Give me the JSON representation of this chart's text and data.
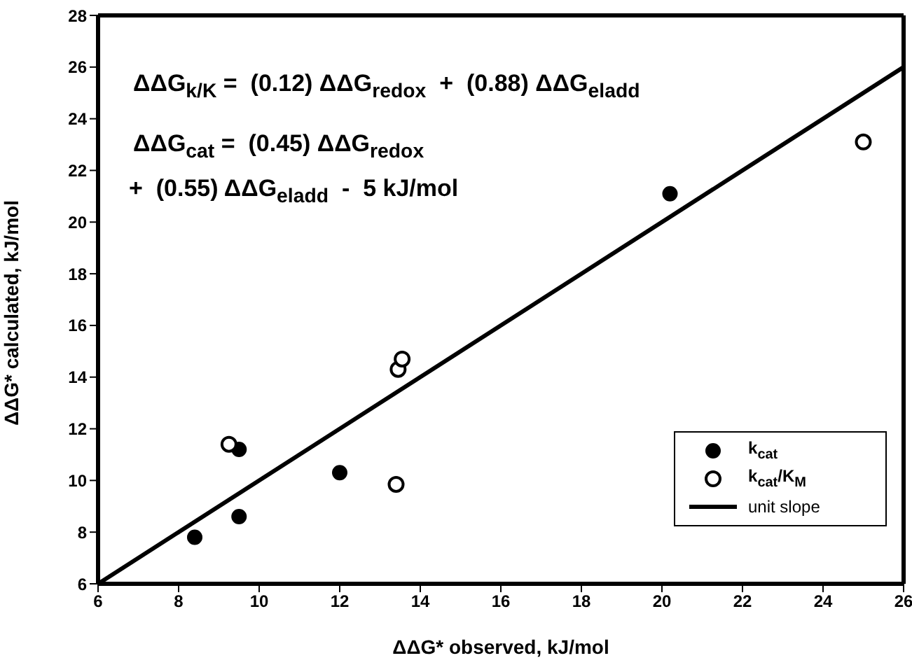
{
  "chart_data": {
    "type": "scatter",
    "xlabel": "ΔΔG* observed, kJ/mol",
    "ylabel": "ΔΔG* calculated, kJ/mol",
    "xlim": [
      6,
      26
    ],
    "xticks": [
      6,
      8,
      10,
      12,
      14,
      16,
      18,
      20,
      22,
      24,
      26
    ],
    "ylim": [
      6,
      28
    ],
    "yticks": [
      6,
      8,
      10,
      12,
      14,
      16,
      18,
      20,
      22,
      24,
      26,
      28
    ],
    "legend": "bottom right",
    "marker": "circle",
    "annotations": [
      "ΔΔG$_{k/K}$ =  (0.12) ΔΔG$_{redox}$  +  (0.88) ΔΔG$_{eladd}$",
      "ΔΔG$_{cat}$ =  (0.45) ΔΔG$_{redox}$",
      "+  (0.55) ΔΔG$_{eladd}$  -  5 kJ/mol"
    ],
    "series": [
      {
        "name": "k$_{cat}$",
        "color": "#000000",
        "x": [
          8.4,
          9.5,
          9.5,
          12.0,
          20.2
        ],
        "values": [
          7.8,
          8.6,
          11.2,
          10.3,
          21.1
        ]
      },
      {
        "name": "k$_{cat}$/K$_{M}$",
        "color": "#000000",
        "marker": "circle_open",
        "x": [
          9.25,
          13.4,
          13.45,
          13.55,
          25.0
        ],
        "values": [
          11.4,
          9.85,
          14.3,
          14.7,
          23.1
        ]
      },
      {
        "name": "unit slope",
        "type": "line",
        "color": "#000000",
        "marker": "none",
        "line_style": "solid",
        "x": [
          6,
          26
        ],
        "values": [
          6,
          26
        ]
      }
    ]
  }
}
